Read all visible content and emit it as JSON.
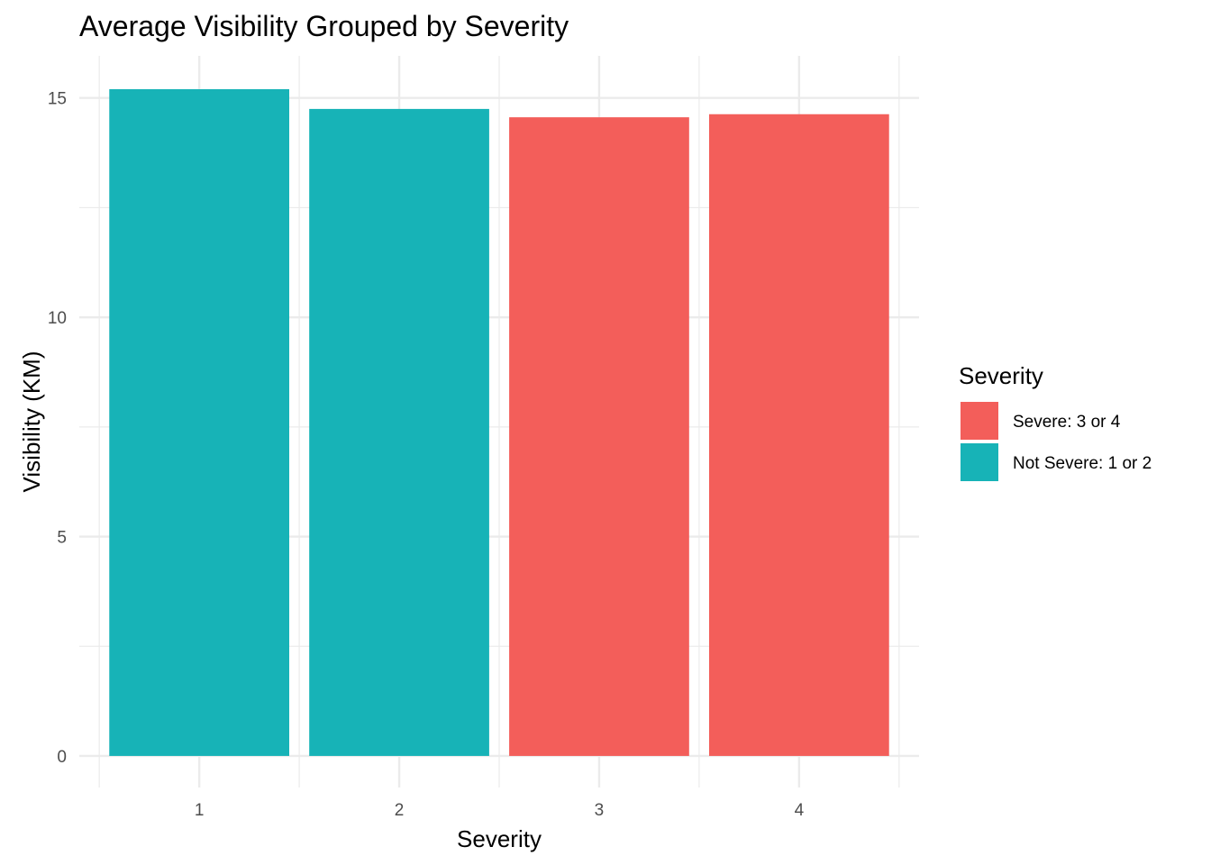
{
  "chart_data": {
    "type": "bar",
    "title": "Average Visibility Grouped by Severity",
    "xlabel": "Severity",
    "ylabel": "Visibility (KM)",
    "categories": [
      "1",
      "2",
      "3",
      "4"
    ],
    "values": [
      15.2,
      14.75,
      14.56,
      14.63
    ],
    "groups": [
      "Not Severe: 1 or 2",
      "Not Severe: 1 or 2",
      "Severe: 3 or 4",
      "Severe: 3 or 4"
    ],
    "ylim": [
      -0.72,
      15.96
    ],
    "yticks": [
      0,
      5,
      10,
      15
    ],
    "grid": true,
    "legend": {
      "title": "Severity",
      "placement": "right",
      "entries": [
        {
          "label": "Severe: 3 or 4",
          "color": "#F35E5A"
        },
        {
          "label": "Not Severe: 1 or 2",
          "color": "#17B3B7"
        }
      ]
    },
    "colors": {
      "Severe: 3 or 4": "#F35E5A",
      "Not Severe: 1 or 2": "#17B3B7"
    }
  }
}
